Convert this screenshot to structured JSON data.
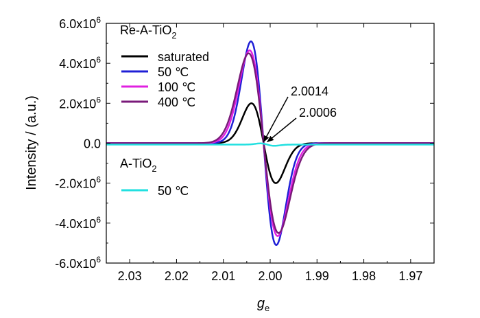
{
  "chart_data": {
    "type": "line",
    "title": "",
    "xlabel": "g",
    "xlabel_sub": "e",
    "ylabel": "Intensity / (a.u.)",
    "xlim": [
      2.035,
      1.965
    ],
    "ylim": [
      -6000000,
      6000000
    ],
    "x_ticks": [
      2.03,
      2.02,
      2.01,
      2.0,
      1.99,
      1.98,
      1.97
    ],
    "x_tick_labels": [
      "2.03",
      "2.02",
      "2.01",
      "2.00",
      "1.99",
      "1.98",
      "1.97"
    ],
    "y_ticks": [
      {
        "value": 6000000,
        "mant": "6.0x10",
        "exp": "6"
      },
      {
        "value": 4000000,
        "mant": "4.0x10",
        "exp": "6"
      },
      {
        "value": 2000000,
        "mant": "2.0x10",
        "exp": "6"
      },
      {
        "value": 0,
        "mant": "0.0",
        "exp": ""
      },
      {
        "value": -2000000,
        "mant": "-2.0x10",
        "exp": "6"
      },
      {
        "value": -4000000,
        "mant": "-4.0x10",
        "exp": "6"
      },
      {
        "value": -6000000,
        "mant": "-6.0x10",
        "exp": "6"
      }
    ],
    "legend_groups": [
      {
        "title_main": "Re-A-TiO",
        "title_sub": "2",
        "entries": [
          "saturated",
          " 50 ℃",
          "100 ℃",
          "400 ℃"
        ]
      },
      {
        "title_main": "A-TiO",
        "title_sub": "2",
        "entries": [
          " 50 ℃"
        ]
      }
    ],
    "series": [
      {
        "name": "saturated",
        "group": "Re-A-TiO2",
        "color": "#000000",
        "x0": 2.0014,
        "peak": 2000000,
        "hw": 0.0026,
        "floor": 0
      },
      {
        "name": "50 ℃",
        "group": "Re-A-TiO2",
        "color": "#1f1fd6",
        "x0": 2.0014,
        "peak": 5100000,
        "hw": 0.0027,
        "floor": 0
      },
      {
        "name": "100 ℃",
        "group": "Re-A-TiO2",
        "color": "#e020e0",
        "x0": 2.0014,
        "peak": 4650000,
        "hw": 0.003,
        "floor": 0
      },
      {
        "name": "400 ℃",
        "group": "Re-A-TiO2",
        "color": "#7a1a7a",
        "x0": 2.0014,
        "peak": 4500000,
        "hw": 0.0032,
        "floor": 0
      },
      {
        "name": "50 ℃",
        "group": "A-TiO2",
        "color": "#22e0e0",
        "x0": 2.0006,
        "peak": 60000,
        "hw": 0.0015,
        "floor": -70000
      }
    ],
    "annotations": [
      {
        "text": "2.0014",
        "target_x": 2.0014,
        "target_y": 0
      },
      {
        "text": "2.0006",
        "target_x": 2.0006,
        "target_y": 0
      }
    ]
  }
}
